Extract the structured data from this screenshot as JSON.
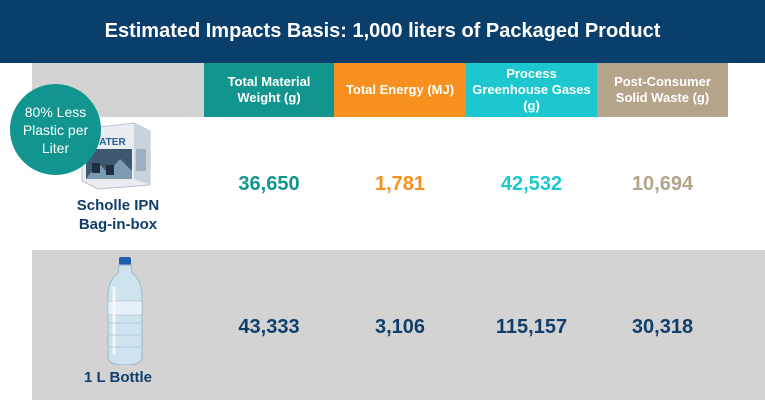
{
  "title": "Estimated Impacts Basis: 1,000 liters of Packaged Product",
  "badge": "80% Less Plastic per Liter",
  "columns": [
    "Total Material Weight  (g)",
    "Total Energy (MJ)",
    "Process Greenhouse Gases (g)",
    "Post-Consumer Solid Waste (g)"
  ],
  "rows": [
    {
      "product_line1": "Scholle IPN",
      "product_line2": "Bag-in-box",
      "values": [
        "36,650",
        "1,781",
        "42,532",
        "10,694"
      ]
    },
    {
      "product_line1": "1 L Bottle",
      "values": [
        "43,333",
        "3,106",
        "115,157",
        "30,318"
      ]
    }
  ],
  "box_brand": "WATER",
  "colors": {
    "header_bar": "#0b3f6b",
    "material_weight": "#13958f",
    "energy": "#f7901e",
    "greenhouse": "#1cc7cf",
    "solid_waste": "#b4a48a",
    "row2_values": "#103e6a"
  }
}
